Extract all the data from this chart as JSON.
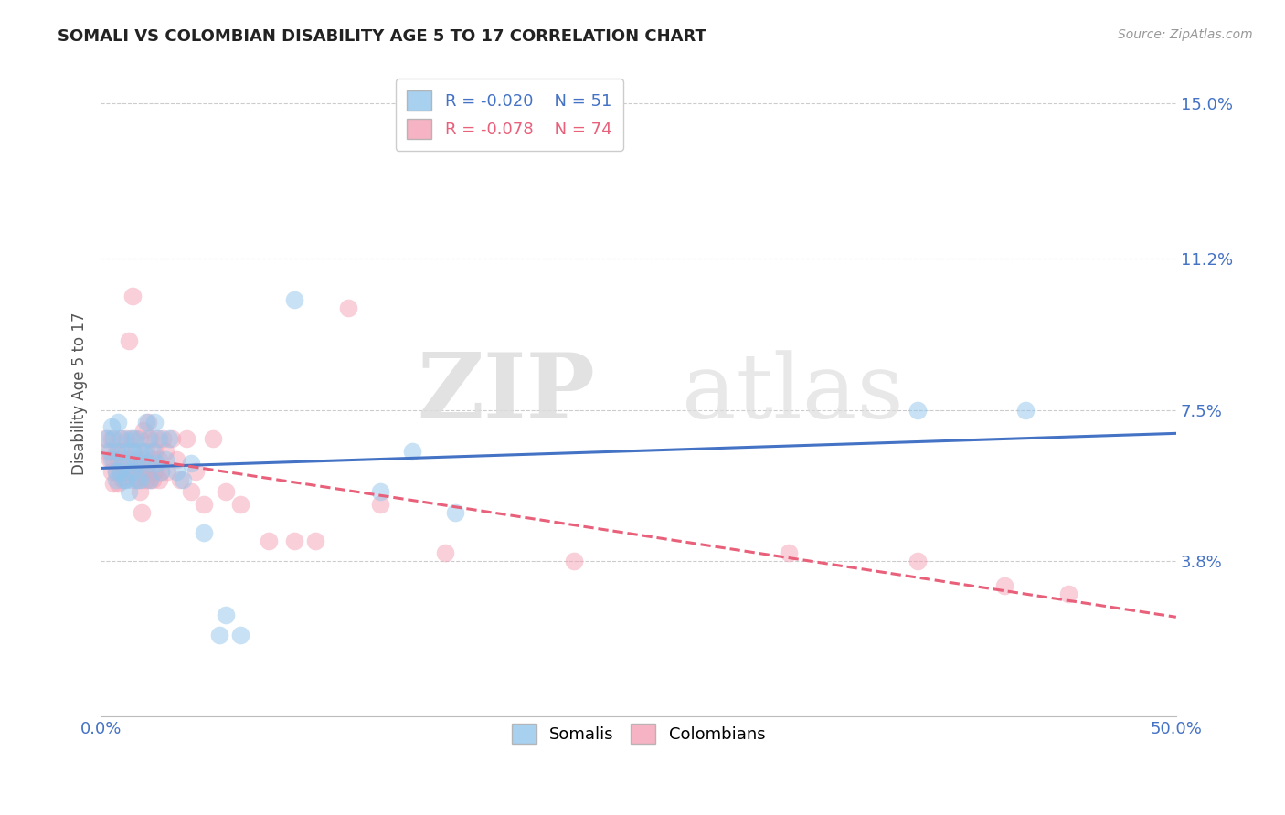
{
  "title": "SOMALI VS COLOMBIAN DISABILITY AGE 5 TO 17 CORRELATION CHART",
  "source": "Source: ZipAtlas.com",
  "ylabel": "Disability Age 5 to 17",
  "xlim": [
    0.0,
    0.5
  ],
  "ylim": [
    0.0,
    0.158
  ],
  "ytick_vals": [
    0.038,
    0.075,
    0.112,
    0.15
  ],
  "ytick_labels": [
    "3.8%",
    "7.5%",
    "11.2%",
    "15.0%"
  ],
  "somali_color": "#92C5EC",
  "colombian_color": "#F4A0B5",
  "trend_somali_color": "#4472C4",
  "trend_colombian_color": "#E8607A",
  "r_somali": -0.02,
  "n_somali": 51,
  "r_colombian": -0.078,
  "n_colombian": 74,
  "watermark_zip": "ZIP",
  "watermark_atlas": "atlas",
  "background_color": "#FFFFFF",
  "grid_color": "#CCCCCC",
  "axis_label_color": "#4472C4",
  "somali_points": [
    [
      0.003,
      0.068
    ],
    [
      0.004,
      0.065
    ],
    [
      0.005,
      0.071
    ],
    [
      0.005,
      0.063
    ],
    [
      0.006,
      0.068
    ],
    [
      0.007,
      0.06
    ],
    [
      0.007,
      0.058
    ],
    [
      0.008,
      0.072
    ],
    [
      0.008,
      0.065
    ],
    [
      0.009,
      0.06
    ],
    [
      0.01,
      0.068
    ],
    [
      0.01,
      0.062
    ],
    [
      0.011,
      0.058
    ],
    [
      0.012,
      0.065
    ],
    [
      0.012,
      0.058
    ],
    [
      0.013,
      0.062
    ],
    [
      0.013,
      0.055
    ],
    [
      0.014,
      0.068
    ],
    [
      0.015,
      0.065
    ],
    [
      0.015,
      0.06
    ],
    [
      0.016,
      0.068
    ],
    [
      0.016,
      0.062
    ],
    [
      0.017,
      0.058
    ],
    [
      0.018,
      0.065
    ],
    [
      0.018,
      0.058
    ],
    [
      0.019,
      0.062
    ],
    [
      0.02,
      0.065
    ],
    [
      0.021,
      0.072
    ],
    [
      0.022,
      0.068
    ],
    [
      0.022,
      0.062
    ],
    [
      0.023,
      0.058
    ],
    [
      0.024,
      0.065
    ],
    [
      0.025,
      0.072
    ],
    [
      0.026,
      0.062
    ],
    [
      0.027,
      0.068
    ],
    [
      0.028,
      0.06
    ],
    [
      0.03,
      0.063
    ],
    [
      0.032,
      0.068
    ],
    [
      0.035,
      0.06
    ],
    [
      0.038,
      0.058
    ],
    [
      0.042,
      0.062
    ],
    [
      0.048,
      0.045
    ],
    [
      0.055,
      0.02
    ],
    [
      0.058,
      0.025
    ],
    [
      0.065,
      0.02
    ],
    [
      0.09,
      0.102
    ],
    [
      0.13,
      0.055
    ],
    [
      0.145,
      0.065
    ],
    [
      0.165,
      0.05
    ],
    [
      0.38,
      0.075
    ],
    [
      0.43,
      0.075
    ]
  ],
  "colombian_points": [
    [
      0.002,
      0.068
    ],
    [
      0.003,
      0.065
    ],
    [
      0.004,
      0.063
    ],
    [
      0.005,
      0.068
    ],
    [
      0.005,
      0.06
    ],
    [
      0.006,
      0.063
    ],
    [
      0.006,
      0.057
    ],
    [
      0.007,
      0.065
    ],
    [
      0.007,
      0.06
    ],
    [
      0.008,
      0.063
    ],
    [
      0.008,
      0.057
    ],
    [
      0.009,
      0.068
    ],
    [
      0.009,
      0.06
    ],
    [
      0.01,
      0.065
    ],
    [
      0.01,
      0.058
    ],
    [
      0.011,
      0.062
    ],
    [
      0.012,
      0.068
    ],
    [
      0.012,
      0.06
    ],
    [
      0.013,
      0.092
    ],
    [
      0.013,
      0.063
    ],
    [
      0.014,
      0.06
    ],
    [
      0.015,
      0.103
    ],
    [
      0.015,
      0.068
    ],
    [
      0.015,
      0.058
    ],
    [
      0.016,
      0.065
    ],
    [
      0.016,
      0.06
    ],
    [
      0.017,
      0.063
    ],
    [
      0.017,
      0.058
    ],
    [
      0.018,
      0.068
    ],
    [
      0.018,
      0.062
    ],
    [
      0.018,
      0.055
    ],
    [
      0.019,
      0.063
    ],
    [
      0.019,
      0.058
    ],
    [
      0.019,
      0.05
    ],
    [
      0.02,
      0.07
    ],
    [
      0.02,
      0.06
    ],
    [
      0.021,
      0.065
    ],
    [
      0.021,
      0.058
    ],
    [
      0.022,
      0.072
    ],
    [
      0.022,
      0.062
    ],
    [
      0.023,
      0.058
    ],
    [
      0.023,
      0.068
    ],
    [
      0.024,
      0.063
    ],
    [
      0.024,
      0.058
    ],
    [
      0.025,
      0.065
    ],
    [
      0.025,
      0.06
    ],
    [
      0.026,
      0.068
    ],
    [
      0.027,
      0.063
    ],
    [
      0.027,
      0.058
    ],
    [
      0.028,
      0.06
    ],
    [
      0.029,
      0.068
    ],
    [
      0.03,
      0.065
    ],
    [
      0.031,
      0.06
    ],
    [
      0.033,
      0.068
    ],
    [
      0.035,
      0.063
    ],
    [
      0.037,
      0.058
    ],
    [
      0.04,
      0.068
    ],
    [
      0.042,
      0.055
    ],
    [
      0.044,
      0.06
    ],
    [
      0.048,
      0.052
    ],
    [
      0.052,
      0.068
    ],
    [
      0.058,
      0.055
    ],
    [
      0.065,
      0.052
    ],
    [
      0.078,
      0.043
    ],
    [
      0.09,
      0.043
    ],
    [
      0.1,
      0.043
    ],
    [
      0.115,
      0.1
    ],
    [
      0.13,
      0.052
    ],
    [
      0.16,
      0.04
    ],
    [
      0.22,
      0.038
    ],
    [
      0.32,
      0.04
    ],
    [
      0.38,
      0.038
    ],
    [
      0.42,
      0.032
    ],
    [
      0.45,
      0.03
    ]
  ]
}
